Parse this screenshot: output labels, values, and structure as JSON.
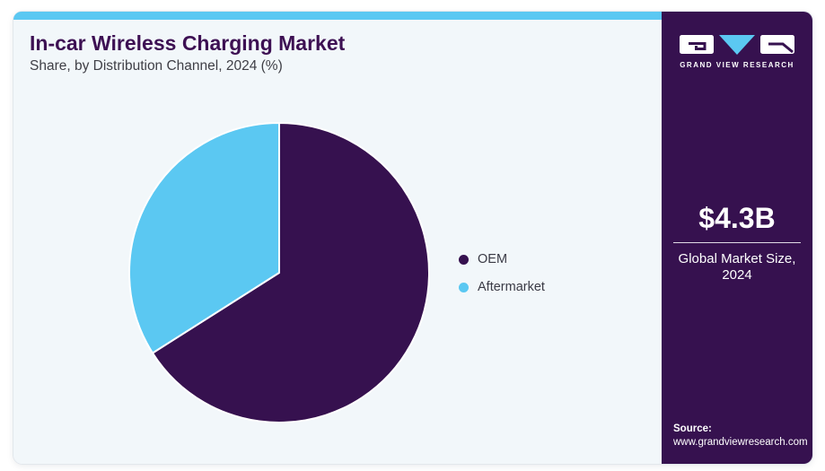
{
  "header": {
    "title": "In-car Wireless Charging Market",
    "subtitle": "Share, by Distribution Channel, 2024 (%)"
  },
  "chart_data": {
    "type": "pie",
    "title": "In-car Wireless Charging Market Share, by Distribution Channel, 2024 (%)",
    "categories": [
      "OEM",
      "Aftermarket"
    ],
    "values": [
      66,
      34
    ],
    "unit": "percent",
    "colors": [
      "#36114f",
      "#5bc8f2"
    ],
    "start_angle": "12-oclock",
    "direction": "clockwise",
    "legend_position": "right",
    "slice_stroke": "#ffffff"
  },
  "sidebar": {
    "logo_wordmark": "GRAND VIEW RESEARCH",
    "stat_value": "$4.3B",
    "stat_label": "Global Market Size, 2024",
    "source_label": "Source:",
    "source_url": "www.grandviewresearch.com"
  },
  "colors": {
    "accent_bar": "#5bc8f2",
    "panel_bg": "#f2f7fa",
    "sidebar_bg": "#36114f",
    "title_text": "#3d1053"
  }
}
